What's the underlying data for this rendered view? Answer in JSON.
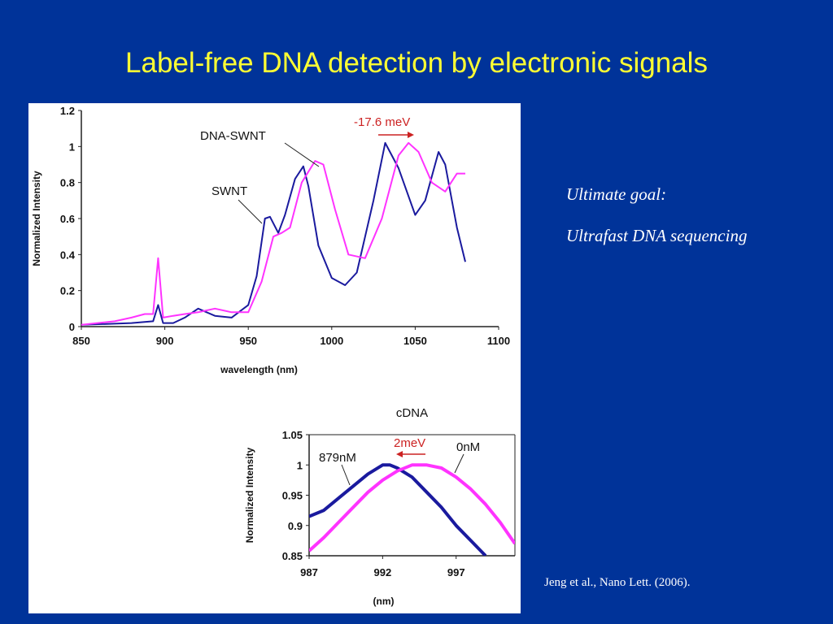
{
  "slide": {
    "title": "Label-free DNA detection by electronic signals",
    "goal_heading": "Ultimate goal:",
    "goal_text": "Ultrafast DNA sequencing",
    "citation": "Jeng et al., Nano Lett. (2006)."
  },
  "colors": {
    "background": "#003399",
    "title": "#ffff33",
    "swnt": "#1a1a9e",
    "dna_swnt": "#ff33ff",
    "arrow": "#cc2222"
  },
  "chart_data": [
    {
      "type": "line",
      "title": "",
      "xlabel": "wavelength (nm)",
      "ylabel": "Normalized Intensity",
      "xlim": [
        850,
        1100
      ],
      "ylim": [
        0,
        1.2
      ],
      "x_ticks": [
        "850",
        "900",
        "950",
        "1000",
        "1050",
        "1100"
      ],
      "y_ticks": [
        "0",
        "0.2",
        "0.4",
        "0.6",
        "0.8",
        "1",
        "1.2"
      ],
      "grid": false,
      "annotations": [
        "DNA-SWNT",
        "SWNT",
        "-17.6 meV"
      ],
      "series": [
        {
          "name": "SWNT",
          "x": [
            850,
            880,
            893,
            896,
            899,
            905,
            912,
            920,
            930,
            940,
            950,
            955,
            960,
            963,
            968,
            972,
            978,
            983,
            986,
            992,
            1000,
            1008,
            1015,
            1025,
            1032,
            1040,
            1050,
            1056,
            1064,
            1068,
            1075,
            1080
          ],
          "y": [
            0.01,
            0.02,
            0.03,
            0.12,
            0.02,
            0.02,
            0.05,
            0.1,
            0.06,
            0.05,
            0.12,
            0.28,
            0.6,
            0.61,
            0.52,
            0.62,
            0.82,
            0.89,
            0.78,
            0.45,
            0.27,
            0.23,
            0.3,
            0.7,
            1.02,
            0.88,
            0.62,
            0.7,
            0.97,
            0.9,
            0.55,
            0.36
          ]
        },
        {
          "name": "DNA-SWNT",
          "x": [
            850,
            870,
            880,
            888,
            893,
            896,
            899,
            905,
            912,
            920,
            930,
            940,
            950,
            958,
            965,
            970,
            975,
            982,
            990,
            995,
            1002,
            1010,
            1020,
            1030,
            1040,
            1046,
            1052,
            1060,
            1068,
            1075,
            1080
          ],
          "y": [
            0.01,
            0.03,
            0.05,
            0.07,
            0.07,
            0.38,
            0.05,
            0.06,
            0.07,
            0.08,
            0.1,
            0.08,
            0.08,
            0.25,
            0.5,
            0.52,
            0.55,
            0.8,
            0.92,
            0.9,
            0.65,
            0.4,
            0.38,
            0.6,
            0.95,
            1.02,
            0.97,
            0.8,
            0.75,
            0.85,
            0.85
          ]
        }
      ]
    },
    {
      "type": "line",
      "title": "cDNA",
      "xlabel": "(nm)",
      "ylabel": "Normalized Intensity",
      "xlim": [
        987,
        1001
      ],
      "ylim": [
        0.85,
        1.05
      ],
      "x_ticks": [
        "987",
        "992",
        "997"
      ],
      "y_ticks": [
        "0.85",
        "0.9",
        "0.95",
        "1",
        "1.05"
      ],
      "grid": false,
      "annotations": [
        "879nM",
        "0nM",
        "2meV"
      ],
      "series": [
        {
          "name": "879nM",
          "x": [
            987,
            988,
            989,
            990,
            991,
            992,
            992.5,
            993,
            994,
            995,
            996,
            997,
            998,
            999
          ],
          "y": [
            0.915,
            0.925,
            0.945,
            0.965,
            0.985,
            1.0,
            1.0,
            0.995,
            0.98,
            0.955,
            0.93,
            0.9,
            0.875,
            0.85
          ]
        },
        {
          "name": "0nM",
          "x": [
            987,
            988,
            989,
            990,
            991,
            992,
            993,
            994,
            995,
            996,
            997,
            998,
            999,
            1000,
            1001
          ],
          "y": [
            0.858,
            0.88,
            0.905,
            0.93,
            0.955,
            0.975,
            0.99,
            1.0,
            1.0,
            0.995,
            0.98,
            0.96,
            0.935,
            0.905,
            0.87
          ]
        }
      ]
    }
  ]
}
